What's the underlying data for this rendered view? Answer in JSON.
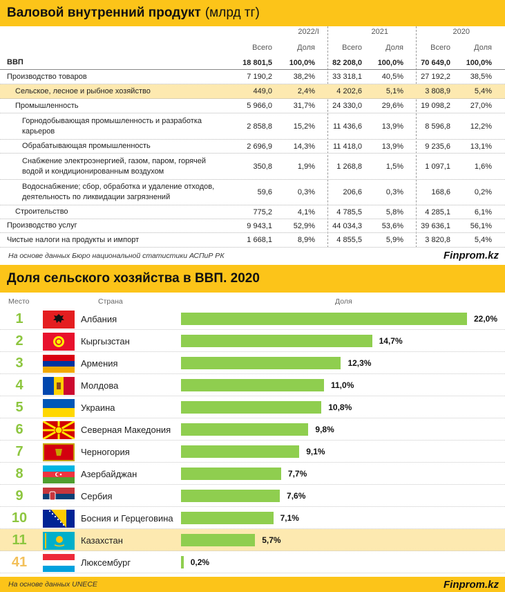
{
  "table": {
    "title": "Валовой внутренний продукт",
    "unit": "(млрд тг)",
    "years": [
      "2022/I",
      "2021",
      "2020"
    ],
    "subheaders": {
      "total": "Всего",
      "share": "Доля"
    },
    "rows": [
      {
        "label": "ВВП",
        "bold": true,
        "cells": [
          "18 801,5",
          "100,0%",
          "82 208,0",
          "100,0%",
          "70 649,0",
          "100,0%"
        ]
      },
      {
        "label": "Производство товаров",
        "cells": [
          "7 190,2",
          "38,2%",
          "33 318,1",
          "40,5%",
          "27 192,2",
          "38,5%"
        ]
      },
      {
        "label": "Сельское, лесное и рыбное хозяйство",
        "highlight": true,
        "cells": [
          "449,0",
          "2,4%",
          "4 202,6",
          "5,1%",
          "3 808,9",
          "5,4%"
        ]
      },
      {
        "label": "Промышленность",
        "cells": [
          "5 966,0",
          "31,7%",
          "24 330,0",
          "29,6%",
          "19 098,2",
          "27,0%"
        ]
      },
      {
        "label": "Горнодобывающая промышленность и разработка карьеров",
        "cells": [
          "2 858,8",
          "15,2%",
          "11 436,6",
          "13,9%",
          "8 596,8",
          "12,2%"
        ]
      },
      {
        "label": "Обрабатывающая промышленность",
        "cells": [
          "2 696,9",
          "14,3%",
          "11 418,0",
          "13,9%",
          "9 235,6",
          "13,1%"
        ]
      },
      {
        "label": "Снабжение электроэнергией, газом, паром, горячей водой и кондиционированным воздухом",
        "cells": [
          "350,8",
          "1,9%",
          "1 268,8",
          "1,5%",
          "1 097,1",
          "1,6%"
        ]
      },
      {
        "label": "Водоснабжение; сбор, обработка и удаление отходов, деятельность по ликвидации загрязнений",
        "cells": [
          "59,6",
          "0,3%",
          "206,6",
          "0,3%",
          "168,6",
          "0,2%"
        ]
      },
      {
        "label": "Строительство",
        "cells": [
          "775,2",
          "4,1%",
          "4 785,5",
          "5,8%",
          "4 285,1",
          "6,1%"
        ]
      },
      {
        "label": "Производство услуг",
        "cells": [
          "9 943,1",
          "52,9%",
          "44 034,3",
          "53,6%",
          "39 636,1",
          "56,1%"
        ]
      },
      {
        "label": "Чистые налоги на продукты и импорт",
        "cells": [
          "1 668,1",
          "8,9%",
          "4 855,5",
          "5,9%",
          "3 820,8",
          "5,4%"
        ]
      }
    ],
    "source": "На основе данных Бюро национальной статистики АСПиР РК",
    "brand": "Finprom.kz"
  },
  "chart": {
    "title": "Доля сельского хозяйства в ВВП. 2020",
    "col_rank": "Место",
    "col_country": "Страна",
    "col_share": "Доля",
    "source": "На основе данных UNECE",
    "brand": "Finprom.kz"
  },
  "chart_data": {
    "type": "bar",
    "orientation": "horizontal",
    "title": "Доля сельского хозяйства в ВВП. 2020",
    "unit": "%",
    "categories": [
      "Албания",
      "Кыргызстан",
      "Армения",
      "Молдова",
      "Украина",
      "Северная Македония",
      "Черногория",
      "Азербайджан",
      "Сербия",
      "Босния и Герцеговина",
      "Казахстан",
      "Люксембург"
    ],
    "ranks": [
      "1",
      "2",
      "3",
      "4",
      "5",
      "6",
      "7",
      "8",
      "9",
      "10",
      "11",
      "41"
    ],
    "values": [
      22.0,
      14.7,
      12.3,
      11.0,
      10.8,
      9.8,
      9.1,
      7.7,
      7.6,
      7.1,
      5.7,
      0.2
    ],
    "labels": [
      "22,0%",
      "14,7%",
      "12,3%",
      "11,0%",
      "10,8%",
      "9,8%",
      "9,1%",
      "7,7%",
      "7,6%",
      "7,1%",
      "5,7%",
      "0,2%"
    ],
    "highlight": [
      "Казахстан"
    ],
    "flags": [
      "albania-flag",
      "kyrgyzstan-flag",
      "armenia-flag",
      "moldova-flag",
      "ukraine-flag",
      "north-macedonia-flag",
      "montenegro-flag",
      "azerbaijan-flag",
      "serbia-flag",
      "bosnia-flag",
      "kazakhstan-flag",
      "luxembourg-flag"
    ],
    "bar_color": "#8fce4f",
    "rank_color": "#8dc63f",
    "highlight_color": "#fde9b0"
  }
}
